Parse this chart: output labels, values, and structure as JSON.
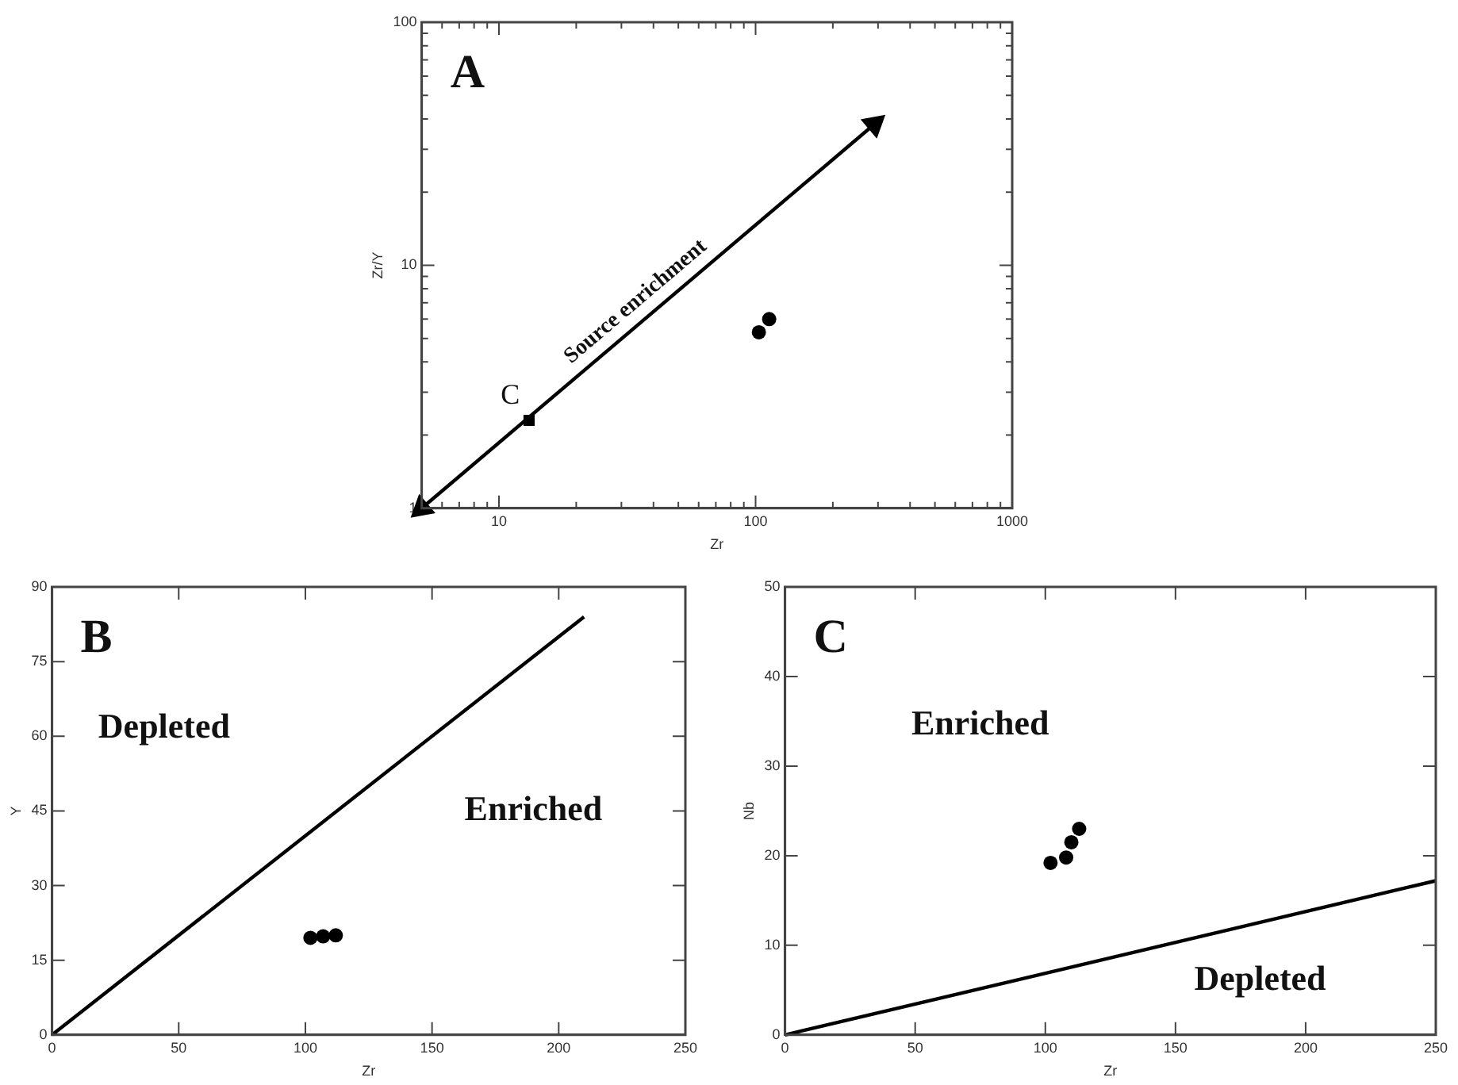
{
  "chart_data": [
    {
      "type": "scatter",
      "title": "A",
      "xlabel": "Zr",
      "ylabel": "Zr/Y",
      "log": "xy",
      "xlim": [
        5,
        1000
      ],
      "ylim": [
        1,
        100
      ],
      "xticks": [
        {
          "value": 6,
          "label": null
        },
        {
          "value": 7,
          "label": null
        },
        {
          "value": 8,
          "label": null
        },
        {
          "value": 9,
          "label": null
        },
        10,
        {
          "value": 20,
          "label": null
        },
        {
          "value": 30,
          "label": null
        },
        {
          "value": 40,
          "label": null
        },
        {
          "value": 50,
          "label": null
        },
        {
          "value": 60,
          "label": null
        },
        {
          "value": 70,
          "label": null
        },
        {
          "value": 80,
          "label": null
        },
        {
          "value": 90,
          "label": null
        },
        100,
        {
          "value": 200,
          "label": null
        },
        {
          "value": 300,
          "label": null
        },
        {
          "value": 400,
          "label": null
        },
        {
          "value": 500,
          "label": null
        },
        {
          "value": 600,
          "label": null
        },
        {
          "value": 700,
          "label": null
        },
        {
          "value": 800,
          "label": null
        },
        {
          "value": 900,
          "label": null
        },
        1000
      ],
      "yticks": [
        1,
        {
          "value": 2,
          "label": null
        },
        {
          "value": 3,
          "label": null
        },
        {
          "value": 4,
          "label": null
        },
        {
          "value": 5,
          "label": null
        },
        {
          "value": 6,
          "label": null
        },
        {
          "value": 7,
          "label": null
        },
        {
          "value": 8,
          "label": null
        },
        {
          "value": 9,
          "label": null
        },
        10,
        {
          "value": 20,
          "label": null
        },
        {
          "value": 30,
          "label": null
        },
        {
          "value": 40,
          "label": null
        },
        {
          "value": 50,
          "label": null
        },
        {
          "value": 60,
          "label": null
        },
        {
          "value": 70,
          "label": null
        },
        {
          "value": 80,
          "label": null
        },
        {
          "value": 90,
          "label": null
        },
        100
      ],
      "series": [
        {
          "type": "line",
          "color": "#000000",
          "marker": "triangle",
          "x": [
            5,
            290
          ],
          "values": [
            1,
            38
          ]
        },
        {
          "type": "scatter",
          "color": "#000000",
          "marker": "square",
          "x": [
            13.1
          ],
          "values": [
            2.3
          ]
        },
        {
          "type": "scatter",
          "color": "#000000",
          "marker": "circle",
          "x": [
            103,
            113
          ],
          "values": [
            5.3,
            6.0
          ]
        }
      ],
      "annotations": [
        "Source enrichment",
        "C"
      ]
    },
    {
      "type": "scatter",
      "title": "B",
      "xlabel": "Zr",
      "ylabel": "Y",
      "xlim": [
        0,
        250
      ],
      "ylim": [
        0,
        90
      ],
      "xticks": [
        0,
        50,
        100,
        150,
        200,
        250
      ],
      "yticks": [
        0,
        15,
        30,
        45,
        60,
        75,
        90
      ],
      "series": [
        {
          "type": "line",
          "color": "#000000",
          "marker": "none",
          "x": [
            0,
            210
          ],
          "values": [
            0,
            84
          ]
        },
        {
          "type": "scatter",
          "color": "#000000",
          "marker": "circle",
          "x": [
            102,
            107,
            112
          ],
          "values": [
            19.5,
            19.8,
            20
          ]
        }
      ],
      "annotations": [
        "Depleted",
        "Enriched"
      ]
    },
    {
      "type": "scatter",
      "title": "C",
      "xlabel": "Zr",
      "ylabel": "Nb",
      "xlim": [
        0,
        250
      ],
      "ylim": [
        0,
        50
      ],
      "xticks": [
        0,
        50,
        100,
        150,
        200,
        250
      ],
      "yticks": [
        0,
        10,
        20,
        30,
        40,
        50
      ],
      "series": [
        {
          "type": "line",
          "color": "#000000",
          "marker": "none",
          "x": [
            0,
            250
          ],
          "values": [
            0,
            17.2
          ]
        },
        {
          "type": "scatter",
          "color": "#000000",
          "marker": "circle",
          "x": [
            102,
            108,
            110,
            113
          ],
          "values": [
            19.2,
            19.8,
            21.5,
            23
          ]
        }
      ],
      "annotations": [
        "Enriched",
        "Depleted"
      ]
    }
  ]
}
